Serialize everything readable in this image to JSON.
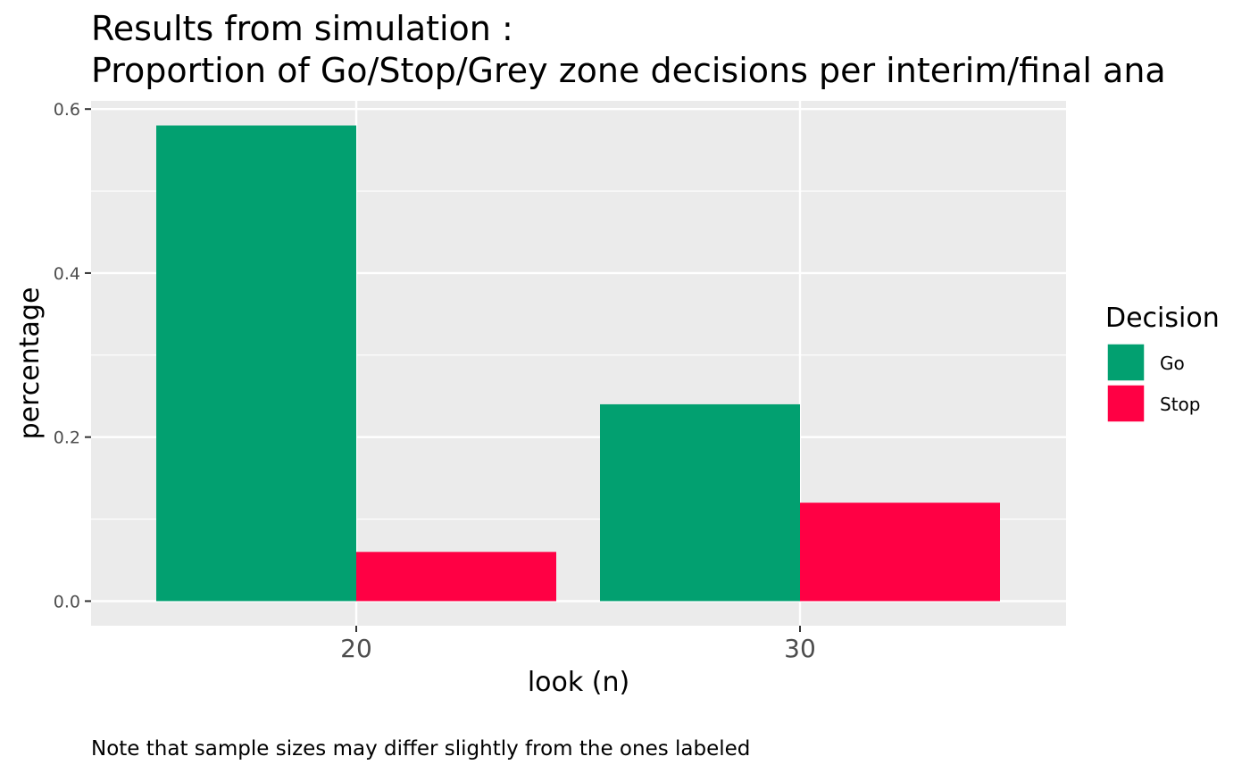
{
  "chart_data": {
    "type": "bar",
    "title_line1": "Results from simulation :",
    "title_line2": "Proportion of Go/Stop/Grey zone decisions per interim/final ana",
    "xlabel": "look (n)",
    "ylabel": "percentage",
    "categories": [
      "20",
      "30"
    ],
    "series": [
      {
        "name": "Go",
        "color": "#02A070",
        "values": [
          0.58,
          0.24
        ]
      },
      {
        "name": "Stop",
        "color": "#FF0044",
        "values": [
          0.06,
          0.12
        ]
      }
    ],
    "y_ticks": [
      0.0,
      0.2,
      0.4,
      0.6
    ],
    "y_tick_labels": [
      "0.0",
      "0.2",
      "0.4",
      "0.6"
    ],
    "ylim": [
      -0.03,
      0.61
    ],
    "legend": {
      "title": "Decision",
      "position": "right"
    },
    "caption": "Note that sample sizes may differ slightly from the ones labeled",
    "grid": true
  }
}
